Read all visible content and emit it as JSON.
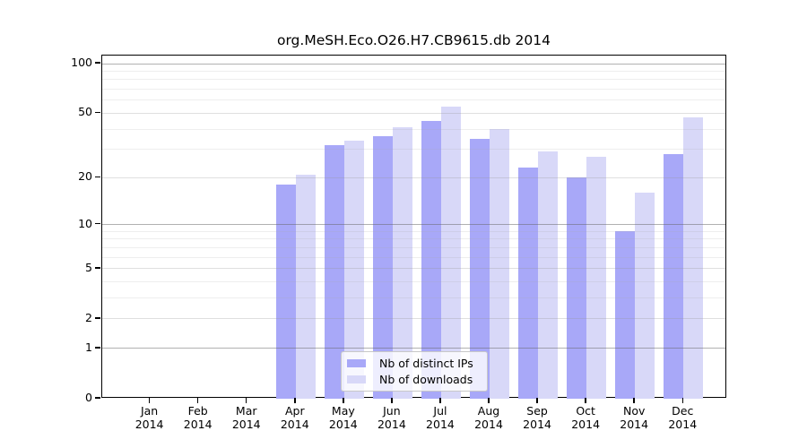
{
  "title": "org.MeSH.Eco.O26.H7.CB9615.db 2014",
  "chart_data": {
    "type": "bar",
    "title": "org.MeSH.Eco.O26.H7.CB9615.db 2014",
    "year": "2014",
    "months": [
      "Jan",
      "Feb",
      "Mar",
      "Apr",
      "May",
      "Jun",
      "Jul",
      "Aug",
      "Sep",
      "Oct",
      "Nov",
      "Dec"
    ],
    "series": [
      {
        "name": "Nb of distinct IPs",
        "color": "#a8a8f8",
        "values": [
          0,
          0,
          0,
          18,
          32,
          36,
          45,
          35,
          23,
          20,
          9,
          28
        ]
      },
      {
        "name": "Nb of downloads",
        "color": "#d8d8f8",
        "values": [
          0,
          0,
          0,
          21,
          34,
          41,
          55,
          40,
          29,
          27,
          16,
          47
        ]
      }
    ],
    "y_scale": "log10(1+x)",
    "ylim": [
      0,
      100
    ],
    "y_ticks": [
      0,
      1,
      2,
      5,
      10,
      20,
      50,
      100
    ],
    "y_decade_gridlines": [
      1,
      10,
      100
    ],
    "y_medium_gridlines": [
      2,
      5,
      20,
      50
    ],
    "y_minor_gridlines": [
      3,
      4,
      6,
      7,
      8,
      9,
      30,
      40,
      60,
      70,
      80,
      90
    ],
    "grid": "on",
    "legend_position": "bottom-center"
  }
}
